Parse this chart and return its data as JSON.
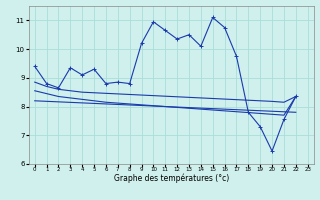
{
  "xlabel": "Graphe des températures (°c)",
  "background_color": "#cff0ec",
  "grid_color": "#aaddda",
  "line_color": "#1a3aad",
  "xlim": [
    -0.5,
    23.5
  ],
  "ylim": [
    6,
    11.5
  ],
  "xticks": [
    0,
    1,
    2,
    3,
    4,
    5,
    6,
    7,
    8,
    9,
    10,
    11,
    12,
    13,
    14,
    15,
    16,
    17,
    18,
    19,
    20,
    21,
    22,
    23
  ],
  "yticks": [
    6,
    7,
    8,
    9,
    10,
    11
  ],
  "line1_x": [
    0,
    1,
    2,
    3,
    4,
    5,
    6,
    7,
    8,
    9,
    10,
    11,
    12,
    13,
    14,
    15,
    16,
    17,
    18,
    19,
    20,
    21,
    22
  ],
  "line1_y": [
    9.4,
    8.8,
    8.65,
    9.35,
    9.1,
    9.3,
    8.8,
    8.85,
    8.8,
    10.2,
    10.95,
    10.65,
    10.35,
    10.5,
    10.1,
    11.1,
    10.75,
    9.75,
    7.8,
    7.3,
    6.45,
    7.55,
    8.35
  ],
  "line2_x": [
    0,
    1,
    2,
    3,
    4,
    5,
    6,
    7,
    8,
    9,
    10,
    11,
    12,
    13,
    14,
    15,
    16,
    17,
    18,
    19,
    20,
    21,
    22
  ],
  "line2_y": [
    8.85,
    8.7,
    8.6,
    8.55,
    8.5,
    8.48,
    8.46,
    8.44,
    8.42,
    8.4,
    8.38,
    8.36,
    8.34,
    8.32,
    8.3,
    8.28,
    8.26,
    8.24,
    8.22,
    8.2,
    8.18,
    8.15,
    8.35
  ],
  "line3_x": [
    0,
    1,
    2,
    3,
    4,
    5,
    6,
    7,
    8,
    9,
    10,
    11,
    12,
    13,
    14,
    15,
    16,
    17,
    18,
    19,
    20,
    21,
    22
  ],
  "line3_y": [
    8.55,
    8.45,
    8.35,
    8.3,
    8.25,
    8.2,
    8.15,
    8.12,
    8.09,
    8.06,
    8.03,
    8.0,
    7.97,
    7.94,
    7.91,
    7.88,
    7.85,
    7.82,
    7.79,
    7.76,
    7.73,
    7.7,
    8.35
  ],
  "line4_x": [
    0,
    22
  ],
  "line4_y": [
    8.2,
    7.8
  ]
}
